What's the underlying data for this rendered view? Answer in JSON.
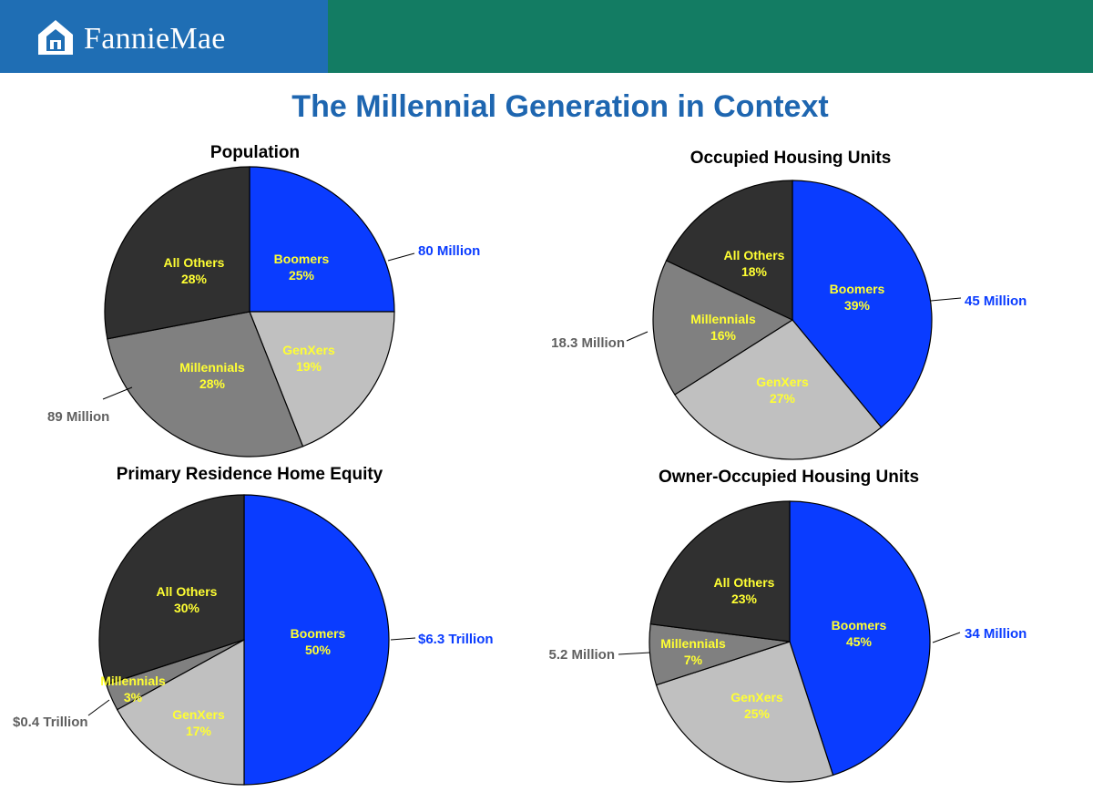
{
  "header": {
    "logo_text": "FannieMae",
    "logo_icon": "fanniemae-house-logo-icon",
    "left_color": "#1f6eb4",
    "right_color": "#137c63"
  },
  "page_title": "The Millennial Generation in Context",
  "colors": {
    "Boomers": "#0a3cff",
    "GenXers": "#c0c0c0",
    "Millennials": "#808080",
    "All Others": "#303030",
    "slice_label": "#ffff33",
    "blue_callout": "#0a3cff",
    "gray_callout": "#606060"
  },
  "chart_data": [
    {
      "type": "pie",
      "title": "Population",
      "slices": [
        {
          "label": "Boomers",
          "value": 25,
          "value_label": "25%"
        },
        {
          "label": "GenXers",
          "value": 19,
          "value_label": "19%"
        },
        {
          "label": "Millennials",
          "value": 28,
          "value_label": "28%"
        },
        {
          "label": "All Others",
          "value": 28,
          "value_label": "28%"
        }
      ],
      "callouts": [
        {
          "slice": "Boomers",
          "text": "80 Million"
        },
        {
          "slice": "Millennials",
          "text": "89 Million"
        }
      ]
    },
    {
      "type": "pie",
      "title": "Occupied Housing Units",
      "slices": [
        {
          "label": "Boomers",
          "value": 39,
          "value_label": "39%"
        },
        {
          "label": "GenXers",
          "value": 27,
          "value_label": "27%"
        },
        {
          "label": "Millennials",
          "value": 16,
          "value_label": "16%"
        },
        {
          "label": "All Others",
          "value": 18,
          "value_label": "18%"
        }
      ],
      "callouts": [
        {
          "slice": "Boomers",
          "text": "45 Million"
        },
        {
          "slice": "Millennials",
          "text": "18.3 Million"
        }
      ]
    },
    {
      "type": "pie",
      "title": "Primary Residence Home Equity",
      "slices": [
        {
          "label": "Boomers",
          "value": 50,
          "value_label": "50%"
        },
        {
          "label": "GenXers",
          "value": 17,
          "value_label": "17%"
        },
        {
          "label": "Millennials",
          "value": 3,
          "value_label": "3%"
        },
        {
          "label": "All Others",
          "value": 30,
          "value_label": "30%"
        }
      ],
      "callouts": [
        {
          "slice": "Boomers",
          "text": "$6.3 Trillion"
        },
        {
          "slice": "Millennials",
          "text": "$0.4 Trillion"
        }
      ]
    },
    {
      "type": "pie",
      "title": "Owner-Occupied Housing Units",
      "slices": [
        {
          "label": "Boomers",
          "value": 45,
          "value_label": "45%"
        },
        {
          "label": "GenXers",
          "value": 25,
          "value_label": "25%"
        },
        {
          "label": "Millennials",
          "value": 7,
          "value_label": "7%"
        },
        {
          "label": "All Others",
          "value": 23,
          "value_label": "23%"
        }
      ],
      "callouts": [
        {
          "slice": "Boomers",
          "text": "34 Million"
        },
        {
          "slice": "Millennials",
          "text": "5.2 Million"
        }
      ]
    }
  ]
}
